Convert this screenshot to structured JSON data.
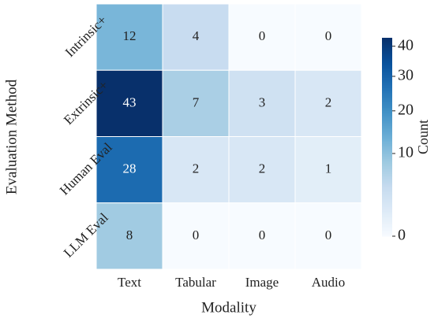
{
  "chart_data": {
    "type": "heatmap",
    "x_label": "Modality",
    "y_label": "Evaluation Method",
    "categories": [
      "Text",
      "Tabular",
      "Image",
      "Audio"
    ],
    "rows": [
      "Intrinsic+",
      "Extrinsic+",
      "Human Eval",
      "LLM Eval"
    ],
    "values": [
      [
        12,
        4,
        0,
        0
      ],
      [
        43,
        7,
        3,
        2
      ],
      [
        28,
        2,
        2,
        1
      ],
      [
        8,
        0,
        0,
        0
      ]
    ],
    "colormap": [
      "#f7fbff",
      "#deebf7",
      "#c6dbef",
      "#9ecae1",
      "#6baed6",
      "#4292c6",
      "#2171b5",
      "#08519c",
      "#08306b"
    ],
    "norm": "power",
    "gamma": 0.6,
    "colorbar_label": "Count",
    "clim": [
      0,
      43
    ],
    "cticks": [
      0,
      10,
      20,
      30,
      40
    ]
  }
}
